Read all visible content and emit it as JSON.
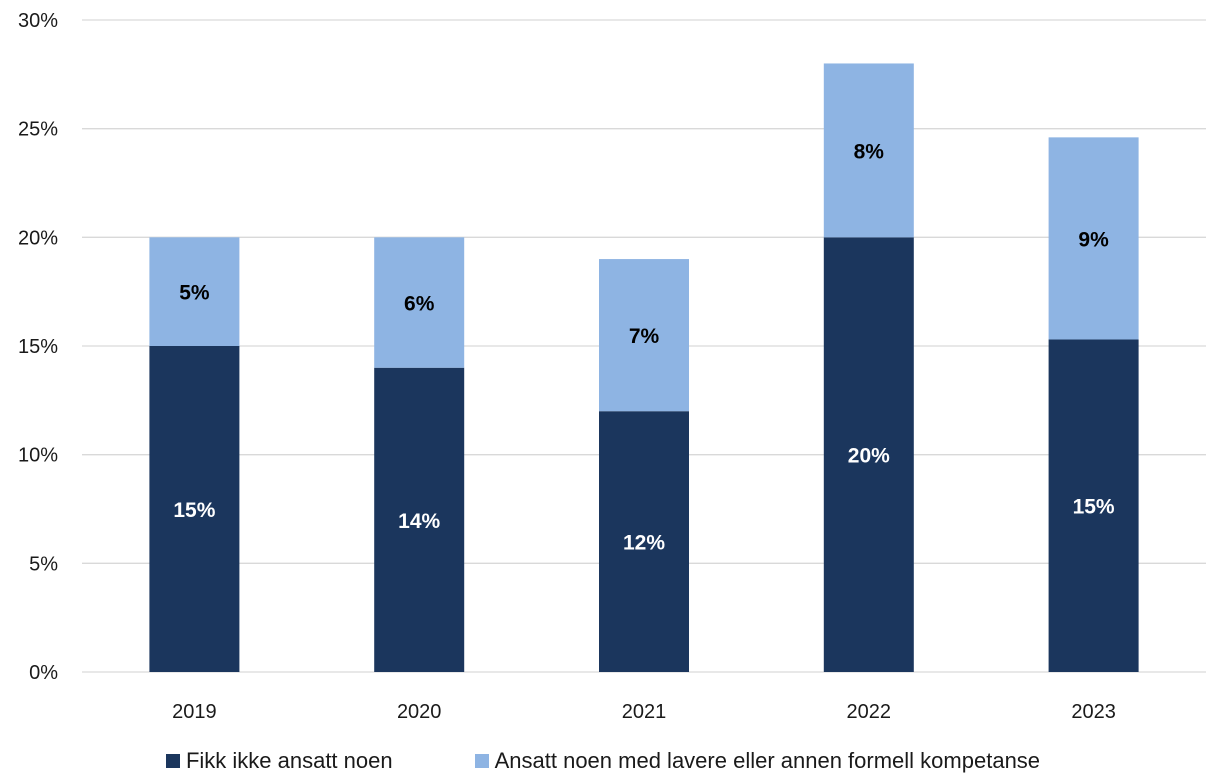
{
  "chart_data": {
    "type": "bar",
    "stacked": true,
    "categories": [
      "2019",
      "2020",
      "2021",
      "2022",
      "2023"
    ],
    "series": [
      {
        "name": "Fikk ikke ansatt noen",
        "color": "#1b365d",
        "values": [
          15,
          14,
          12,
          20,
          15.3
        ],
        "labels": [
          "15%",
          "14%",
          "12%",
          "20%",
          "15%"
        ],
        "label_color": "#ffffff"
      },
      {
        "name": "Ansatt noen med lavere eller annen formell kompetanse",
        "color": "#8eb4e3",
        "values": [
          5,
          6,
          7,
          8,
          9.3
        ],
        "labels": [
          "5%",
          "6%",
          "7%",
          "8%",
          "9%"
        ],
        "label_color": "#000000"
      }
    ],
    "y_ticks": [
      "0%",
      "5%",
      "10%",
      "15%",
      "20%",
      "25%",
      "30%"
    ],
    "ylim": [
      0,
      30
    ],
    "grid": true,
    "legend_position": "bottom",
    "title": "",
    "xlabel": "",
    "ylabel": ""
  }
}
